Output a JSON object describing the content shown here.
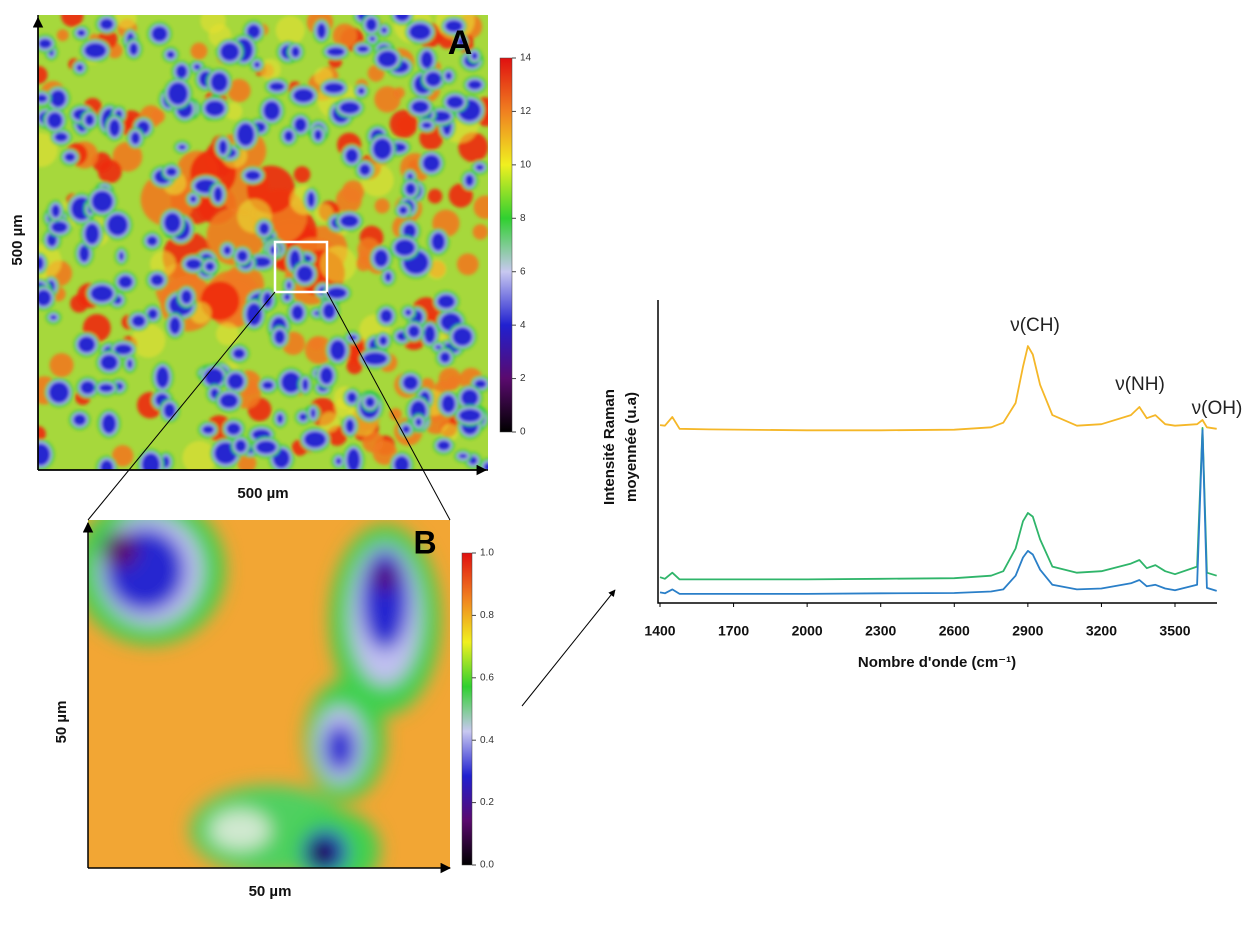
{
  "chart_data": [
    {
      "type": "heatmap",
      "title": "A",
      "xlabel": "500 µm",
      "ylabel": "500 µm",
      "colorscale": [
        "#000000",
        "#5a0a6e",
        "#2020d0",
        "#c8c8f0",
        "#30d030",
        "#f0f020",
        "#f08020",
        "#e01010"
      ],
      "clim": [
        0,
        14
      ],
      "cticks": [
        0,
        2,
        4,
        6,
        8,
        10,
        12,
        14
      ]
    },
    {
      "type": "heatmap",
      "title": "B",
      "xlabel": "50 µm",
      "ylabel": "50 µm",
      "colorscale": [
        "#000000",
        "#5a0a6e",
        "#2020d0",
        "#c8c8f0",
        "#30d030",
        "#f0f020",
        "#f08020",
        "#e01010"
      ],
      "clim": [
        0,
        1
      ],
      "cticks": [
        {
          "value": 0,
          "label": "0.0"
        },
        0.2,
        0.4,
        0.6,
        0.8,
        {
          "value": 1,
          "label": "1.0"
        }
      ]
    },
    {
      "type": "line",
      "xlabel": "Nombre d'onde (cm⁻¹)",
      "ylabel": [
        "Intensité Raman",
        "moyennée (u.a)"
      ],
      "annotations": [
        "ν(CH)",
        "ν(NH)",
        "ν(OH)"
      ],
      "xlim": [
        1400,
        3670
      ],
      "xticks": [
        1400,
        1700,
        2000,
        2300,
        2600,
        2900,
        3200,
        3500
      ],
      "ylim": [
        0,
        100
      ],
      "x": [
        1400,
        1420,
        1450,
        1480,
        1600,
        2000,
        2300,
        2600,
        2750,
        2800,
        2850,
        2880,
        2900,
        2920,
        2950,
        3000,
        3100,
        3200,
        3320,
        3355,
        3385,
        3420,
        3460,
        3500,
        3590,
        3612,
        3630,
        3670
      ],
      "series": [
        {
          "color": "#f5b728",
          "values": [
            58.7,
            58.5,
            61.4,
            57.5,
            57.3,
            57,
            57,
            57.2,
            58,
            59.5,
            66,
            78,
            84.8,
            82,
            72,
            62,
            58.5,
            59,
            62,
            64.7,
            61,
            62,
            59,
            58.5,
            59,
            60.4,
            58,
            57.5
          ]
        },
        {
          "color": "#2fb56a",
          "values": [
            8.5,
            8,
            10,
            7.8,
            7.8,
            7.8,
            8,
            8.2,
            9,
            10.5,
            18,
            27,
            29.7,
            28.5,
            21,
            12,
            10,
            10.5,
            13,
            14.2,
            11.5,
            12.5,
            10.5,
            9.5,
            12,
            57.8,
            10,
            9
          ]
        },
        {
          "color": "#2a7fc8",
          "values": [
            3.5,
            3.2,
            4.5,
            3,
            3,
            3,
            3.2,
            3.3,
            3.8,
            4.5,
            9,
            15,
            17.2,
            16,
            11,
            6,
            4.5,
            4.8,
            6.5,
            7.6,
            5.5,
            6,
            4.8,
            4.2,
            6,
            57.1,
            5,
            4
          ]
        }
      ]
    }
  ]
}
